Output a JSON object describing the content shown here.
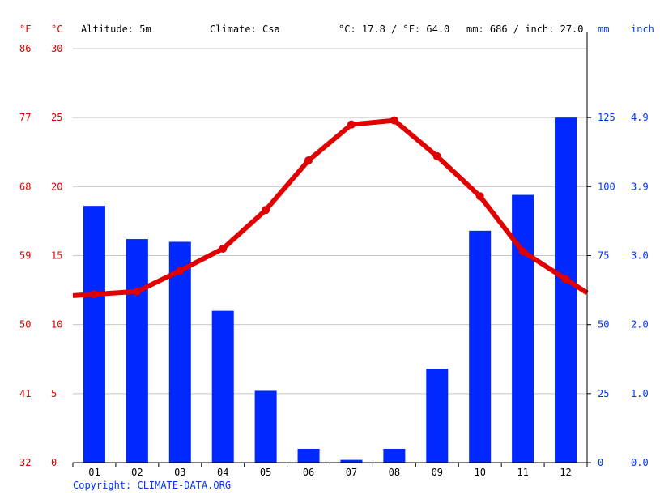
{
  "header": {
    "unit_f": "°F",
    "unit_c": "°C",
    "altitude": "Altitude: 5m",
    "climate": "Climate: Csa",
    "temp_avg": "°C: 17.8 / °F: 64.0",
    "precip_total": "mm: 686 / inch: 27.0",
    "unit_mm": "mm",
    "unit_inch": "inch"
  },
  "footer": {
    "copyright": "Copyright: CLIMATE-DATA.ORG"
  },
  "colors": {
    "temperature": "#e00000",
    "precipitation": "#0028ff",
    "grid": "#c8c8c8",
    "axis": "#000000"
  },
  "chart_data": {
    "type": "bar+line",
    "categories": [
      "01",
      "02",
      "03",
      "04",
      "05",
      "06",
      "07",
      "08",
      "09",
      "10",
      "11",
      "12"
    ],
    "series": [
      {
        "type": "bar",
        "axis": "right",
        "values": [
          93,
          81,
          80,
          55,
          26,
          5,
          1,
          5,
          34,
          84,
          97,
          125
        ]
      },
      {
        "type": "line",
        "axis": "left",
        "values": [
          12.2,
          12.4,
          13.9,
          15.5,
          18.3,
          21.9,
          24.5,
          24.8,
          22.2,
          19.3,
          15.3,
          13.3
        ]
      }
    ],
    "temp_ticks_c": [
      "0",
      "5",
      "10",
      "15",
      "20",
      "25",
      "30"
    ],
    "temp_ticks_f": [
      "32",
      "41",
      "50",
      "59",
      "68",
      "77",
      "86"
    ],
    "precip_ticks_mm": [
      "0",
      "25",
      "50",
      "75",
      "100",
      "125"
    ],
    "precip_ticks_inch": [
      "0.0",
      "1.0",
      "2.0",
      "3.0",
      "3.9",
      "4.9"
    ],
    "temp_range_c": [
      0,
      30
    ],
    "precip_range_mm": [
      0,
      150
    ],
    "grid": true
  }
}
